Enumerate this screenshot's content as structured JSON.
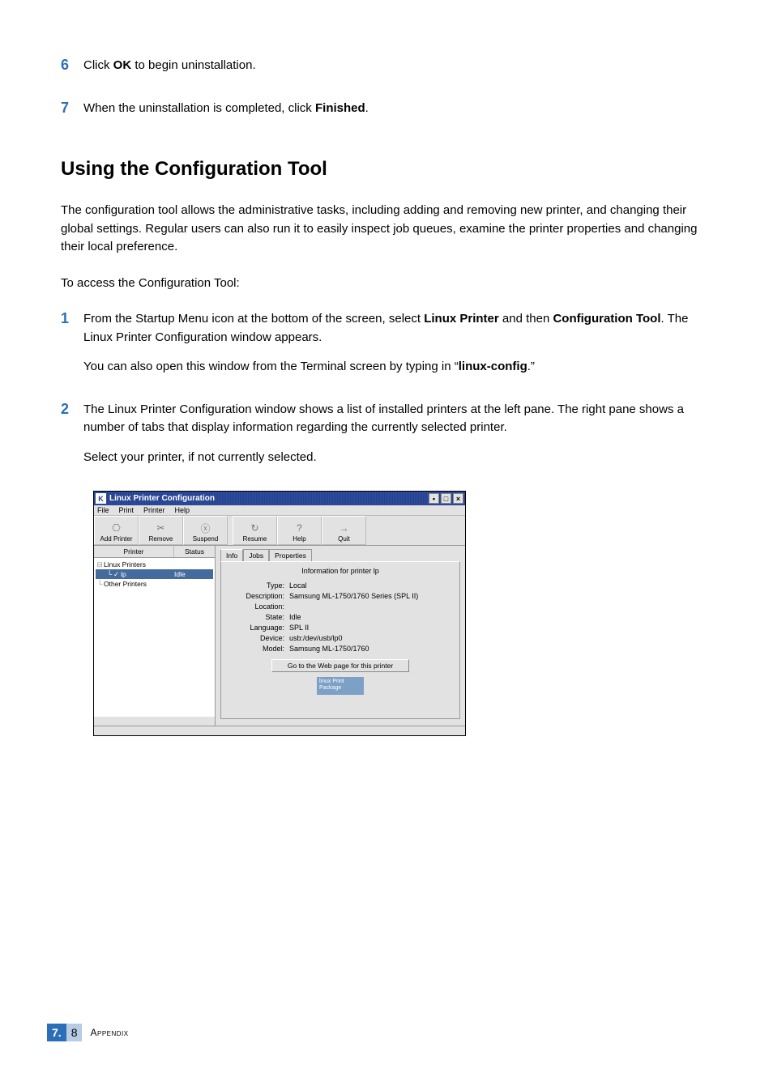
{
  "steps_top": [
    {
      "num": "6",
      "html": "Click <b>OK</b> to begin uninstallation."
    },
    {
      "num": "7",
      "html": "When the uninstallation is completed, click <b>Finished</b>."
    }
  ],
  "section_title": "Using the Configuration Tool",
  "intro_paragraph": "The configuration tool allows the administrative tasks, including adding and removing new printer, and changing their global settings. Regular users can also run it to easily inspect job queues, examine the printer properties and changing their local preference.",
  "access_line": "To access the Configuration Tool:",
  "steps_main": [
    {
      "num": "1",
      "html": "From the Startup Menu icon at the bottom of the screen, select <b>Linux Printer</b> and then <b>Configuration Tool</b>. The Linux Printer Configuration window appears.",
      "sub_html": "You can also open this window from the Terminal screen by typing in “<b>linux-config</b>.”"
    },
    {
      "num": "2",
      "html": "The Linux Printer Configuration window shows a list of installed printers at the left pane. The right pane shows a number of tabs that display information regarding the currently selected printer.",
      "sub_html": "Select your printer, if not currently selected."
    }
  ],
  "window": {
    "title_glyph": "K",
    "title": "Linux Printer Configuration",
    "win_buttons": [
      "•",
      "□",
      "×"
    ],
    "menu": [
      "File",
      "Print",
      "Printer",
      "Help"
    ],
    "toolbar": [
      {
        "icon": "⎔",
        "label": "Add Printer"
      },
      {
        "icon": "✂",
        "label": "Remove"
      },
      {
        "icon": "ⓧ",
        "label": "Suspend"
      },
      {
        "icon": "↻",
        "label": "Resume"
      },
      {
        "icon": "?",
        "label": "Help"
      },
      {
        "icon": "→",
        "label": "Quit"
      }
    ],
    "left_header": {
      "col1": "Printer",
      "col2": "Status"
    },
    "tree": [
      {
        "indent": 0,
        "sym": "⊟",
        "label": "Linux Printers",
        "status": "",
        "selected": false
      },
      {
        "indent": 1,
        "sym": "└",
        "label": "lp",
        "status": "Idle",
        "selected": true,
        "icon": "✓"
      },
      {
        "indent": 0,
        "sym": "└",
        "label": "Other Printers",
        "status": "",
        "selected": false
      }
    ],
    "tabs": [
      "Info",
      "Jobs",
      "Properties"
    ],
    "active_tab": 0,
    "info_title": "Information for printer lp",
    "info_rows": [
      {
        "label": "Type:",
        "value": "Local"
      },
      {
        "label": "Description:",
        "value": "Samsung ML-1750/1760 Series (SPL II)"
      },
      {
        "label": "Location:",
        "value": ""
      },
      {
        "label": "State:",
        "value": "Idle"
      },
      {
        "label": "Language:",
        "value": "SPL II"
      },
      {
        "label": "Device:",
        "value": "usb:/dev/usb/lp0"
      },
      {
        "label": "Model:",
        "value": "Samsung ML-1750/1760"
      }
    ],
    "go_button": "Go to the Web page for this printer",
    "badge": "linux Print\nPackage"
  },
  "footer": {
    "chapter": "7.",
    "page": "8",
    "label": "Appendix"
  }
}
